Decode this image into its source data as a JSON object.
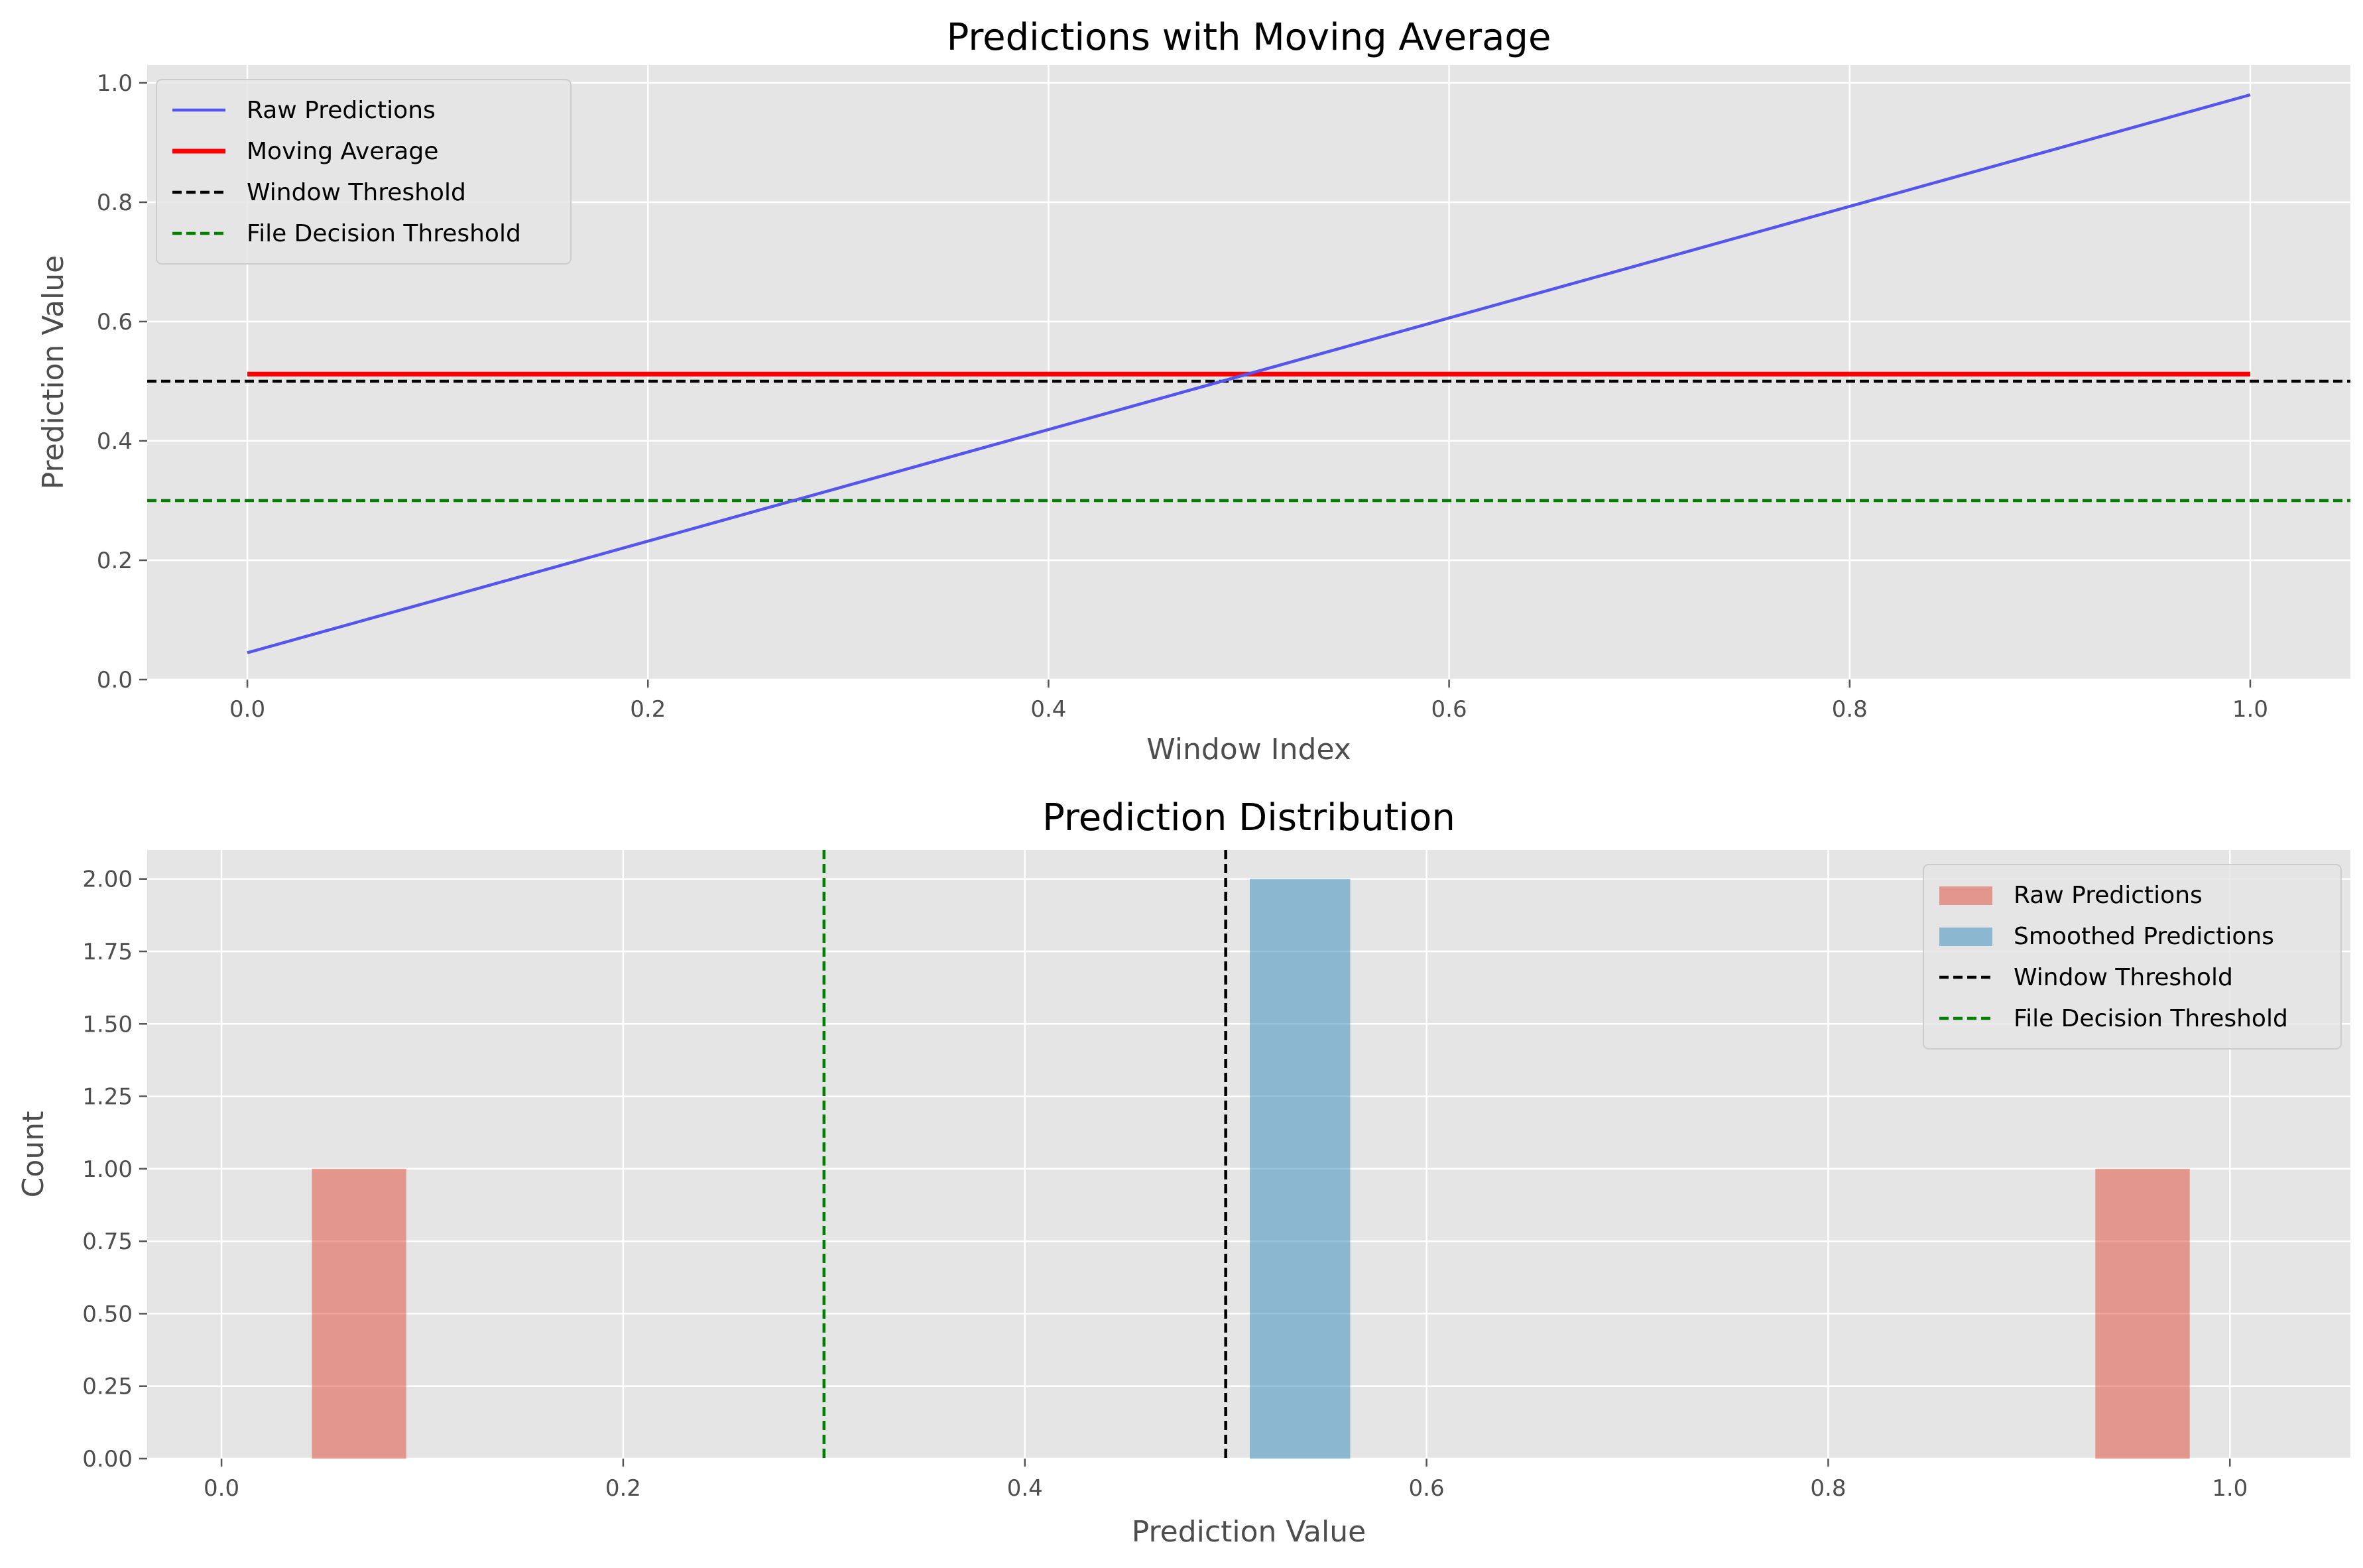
{
  "chart_data": [
    {
      "type": "line",
      "title": "Predictions with Moving Average",
      "xlabel": "Window Index",
      "ylabel": "Prediction Value",
      "xlim": [
        -0.05,
        1.05
      ],
      "ylim": [
        0.0,
        1.03
      ],
      "xticks": [
        "0.0",
        "0.2",
        "0.4",
        "0.6",
        "0.8",
        "1.0"
      ],
      "yticks": [
        "0.0",
        "0.2",
        "0.4",
        "0.6",
        "0.8",
        "1.0"
      ],
      "grid": true,
      "legend_position": "upper left",
      "series": [
        {
          "name": "Raw Predictions",
          "style": "solid",
          "color": "#5555ee",
          "x": [
            0.0,
            1.0
          ],
          "y": [
            0.045,
            0.98
          ]
        },
        {
          "name": "Moving Average",
          "style": "solid-thick",
          "color": "#ff0000",
          "x": [
            0.0,
            1.0
          ],
          "y": [
            0.512,
            0.512
          ]
        },
        {
          "name": "Window Threshold",
          "style": "dashed",
          "color": "#000000",
          "y_const": 0.5
        },
        {
          "name": "File Decision Threshold",
          "style": "dashed",
          "color": "#008000",
          "y_const": 0.3
        }
      ]
    },
    {
      "type": "bar",
      "title": "Prediction Distribution",
      "xlabel": "Prediction Value",
      "ylabel": "Count",
      "xlim": [
        -0.037,
        1.06
      ],
      "ylim": [
        0.0,
        2.1
      ],
      "xticks": [
        "0.0",
        "0.2",
        "0.4",
        "0.6",
        "0.8",
        "1.0"
      ],
      "yticks": [
        "0.00",
        "0.25",
        "0.50",
        "0.75",
        "1.00",
        "1.25",
        "1.50",
        "1.75",
        "2.00"
      ],
      "grid": true,
      "legend_position": "upper right",
      "series": [
        {
          "name": "Raw Predictions",
          "kind": "hist",
          "color": "#e24a33",
          "alpha": 0.5,
          "bins": [
            {
              "x0": 0.045,
              "x1": 0.092,
              "count": 1
            },
            {
              "x0": 0.933,
              "x1": 0.98,
              "count": 1
            }
          ]
        },
        {
          "name": "Smoothed Predictions",
          "kind": "hist",
          "color": "#348abd",
          "alpha": 0.5,
          "bins": [
            {
              "x0": 0.512,
              "x1": 0.562,
              "count": 2
            }
          ]
        },
        {
          "name": "Window Threshold",
          "kind": "vline",
          "style": "dashed",
          "color": "#000000",
          "x_const": 0.5
        },
        {
          "name": "File Decision Threshold",
          "kind": "vline",
          "style": "dashed",
          "color": "#008000",
          "x_const": 0.3
        }
      ]
    }
  ]
}
